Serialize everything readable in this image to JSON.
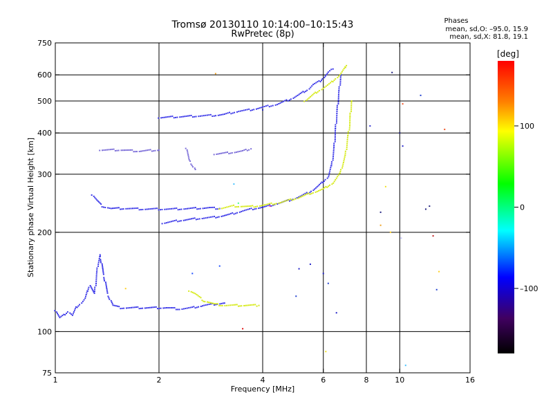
{
  "chart_data": {
    "type": "scatter",
    "title": "Tromsø 20130110 10:14:00–10:15:43",
    "subtitle": "RwPretec (8p)",
    "xlabel": "Frequency [MHz]",
    "ylabel": "Stationary phase Virtual Height [km]",
    "xscale": "log",
    "yscale": "log",
    "xlim": [
      1,
      16
    ],
    "ylim": [
      75,
      750
    ],
    "xticks": [
      1,
      2,
      4,
      6,
      8,
      10,
      16
    ],
    "xtick_labels": [
      "1",
      "2",
      "4",
      "6",
      "8",
      "10",
      "16"
    ],
    "yticks": [
      75,
      100,
      200,
      300,
      400,
      500,
      600,
      750
    ],
    "ytick_labels": [
      "75",
      "100",
      "200",
      "300",
      "400",
      "500",
      "600",
      "750"
    ],
    "xgrid": [
      2,
      4,
      6,
      8,
      10
    ],
    "ygrid": [
      100,
      200,
      300,
      400,
      500,
      600
    ],
    "grid": true,
    "phase_stats": {
      "header": "Phases",
      "o_line": "mean, sd,O: –95.0, 15.9",
      "x_line": "mean, sd,X: 81.8, 19.1"
    },
    "colorbar": {
      "label": "[deg]",
      "range": [
        -180,
        180
      ],
      "ticks": [
        100,
        0,
        -100
      ],
      "tick_labels": [
        "100",
        "0",
        "–100"
      ]
    },
    "series": [
      {
        "mode": "O",
        "color": "#3b38e8",
        "segments": [
          [
            [
              1.0,
              116
            ],
            [
              1.03,
              110
            ],
            [
              1.06,
              112
            ],
            [
              1.09,
              115
            ],
            [
              1.12,
              112
            ],
            [
              1.15,
              118
            ],
            [
              1.18,
              121
            ],
            [
              1.22,
              126
            ],
            [
              1.26,
              138
            ],
            [
              1.3,
              130
            ],
            [
              1.33,
              160
            ],
            [
              1.35,
              170
            ],
            [
              1.38,
              150
            ],
            [
              1.42,
              130
            ],
            [
              1.47,
              120
            ],
            [
              1.55,
              118
            ],
            [
              1.7,
              118
            ],
            [
              1.9,
              118
            ],
            [
              2.1,
              118
            ],
            [
              2.3,
              117
            ],
            [
              2.5,
              118
            ],
            [
              2.7,
              120
            ],
            [
              2.9,
              121
            ],
            [
              3.1,
              122
            ]
          ],
          [
            [
              1.28,
              260
            ],
            [
              1.32,
              250
            ],
            [
              1.37,
              240
            ],
            [
              1.45,
              236
            ],
            [
              1.6,
              236
            ],
            [
              1.8,
              235
            ],
            [
              2.0,
              235
            ],
            [
              2.2,
              235
            ],
            [
              2.5,
              236
            ],
            [
              2.8,
              237
            ],
            [
              3.0,
              236
            ]
          ],
          [
            [
              2.05,
              213
            ],
            [
              2.3,
              217
            ],
            [
              2.6,
              220
            ],
            [
              2.9,
              222
            ],
            [
              3.2,
              226
            ],
            [
              3.5,
              232
            ],
            [
              3.8,
              236
            ],
            [
              4.1,
              239
            ],
            [
              4.4,
              244
            ],
            [
              4.8,
              250
            ],
            [
              5.2,
              258
            ],
            [
              5.5,
              265
            ],
            [
              5.8,
              276
            ],
            [
              6.0,
              284
            ],
            [
              6.2,
              295
            ],
            [
              6.35,
              320
            ],
            [
              6.45,
              360
            ],
            [
              6.5,
              400
            ],
            [
              6.55,
              440
            ],
            [
              6.6,
              480
            ],
            [
              6.65,
              520
            ],
            [
              6.7,
              560
            ],
            [
              6.75,
              600
            ]
          ],
          [
            [
              2.0,
              445
            ],
            [
              2.6,
              450
            ],
            [
              2.9,
              452
            ],
            [
              3.1,
              455
            ],
            [
              3.4,
              465
            ],
            [
              3.7,
              470
            ],
            [
              4.0,
              478
            ],
            [
              4.4,
              488
            ],
            [
              4.8,
              505
            ],
            [
              5.1,
              522
            ],
            [
              5.4,
              540
            ],
            [
              5.6,
              560
            ],
            [
              5.9,
              575
            ],
            [
              6.2,
              610
            ],
            [
              6.4,
              625
            ]
          ]
        ]
      },
      {
        "mode": "X",
        "color": "#d6ea1a",
        "segments": [
          [
            [
              2.45,
              133
            ],
            [
              2.55,
              130
            ],
            [
              2.7,
              124
            ],
            [
              2.9,
              121
            ],
            [
              3.1,
              120
            ],
            [
              3.3,
              120
            ],
            [
              3.6,
              120
            ],
            [
              3.9,
              120
            ]
          ],
          [
            [
              3.0,
              236
            ],
            [
              3.3,
              240
            ],
            [
              3.7,
              239
            ],
            [
              4.1,
              242
            ],
            [
              4.5,
              246
            ],
            [
              5.0,
              253
            ],
            [
              5.5,
              262
            ],
            [
              6.0,
              270
            ],
            [
              6.4,
              282
            ],
            [
              6.7,
              300
            ],
            [
              6.95,
              340
            ],
            [
              7.05,
              380
            ],
            [
              7.15,
              420
            ],
            [
              7.2,
              460
            ],
            [
              7.25,
              500
            ]
          ],
          [
            [
              5.3,
              500
            ],
            [
              5.8,
              535
            ],
            [
              6.3,
              565
            ],
            [
              6.7,
              600
            ],
            [
              6.95,
              630
            ],
            [
              7.0,
              640
            ]
          ]
        ]
      },
      {
        "mode": "other",
        "color": "#7a6cd8",
        "segments": [
          [
            [
              2.9,
              345
            ],
            [
              3.2,
              348
            ],
            [
              3.5,
              352
            ],
            [
              3.7,
              358
            ]
          ],
          [
            [
              2.4,
              360
            ],
            [
              2.45,
              330
            ],
            [
              2.5,
              320
            ],
            [
              2.55,
              310
            ]
          ],
          [
            [
              1.35,
              355
            ],
            [
              1.55,
              355
            ],
            [
              1.75,
              352
            ],
            [
              2.0,
              355
            ]
          ]
        ]
      }
    ],
    "outliers": [
      [
        2.92,
        605,
        "#f0a020"
      ],
      [
        4.0,
        470,
        "#2020c8"
      ],
      [
        8.2,
        420,
        "#3030d0"
      ],
      [
        9.5,
        610,
        "#202080"
      ],
      [
        10.2,
        490,
        "#f05020"
      ],
      [
        13.5,
        410,
        "#f05020"
      ],
      [
        11.5,
        520,
        "#2040d0"
      ],
      [
        10.0,
        400,
        "#202080"
      ],
      [
        12.5,
        195,
        "#c02020"
      ],
      [
        9.4,
        200,
        "#ffd020"
      ],
      [
        8.8,
        210,
        "#f0a020"
      ],
      [
        9.1,
        275,
        "#f0e020"
      ],
      [
        10.2,
        365,
        "#2020c8"
      ],
      [
        3.5,
        102,
        "#e01010"
      ],
      [
        6.1,
        87,
        "#f0e020"
      ],
      [
        6.55,
        114,
        "#2020c8"
      ],
      [
        5.0,
        128,
        "#2040d0"
      ],
      [
        6.2,
        140,
        "#2040d0"
      ],
      [
        12.8,
        134,
        "#2040d0"
      ],
      [
        10.1,
        192,
        "#c0c0ff"
      ],
      [
        8.8,
        230,
        "#202080"
      ],
      [
        2.5,
        150,
        "#2050ff"
      ],
      [
        3.0,
        158,
        "#2050ff"
      ],
      [
        5.1,
        155,
        "#2020c8"
      ],
      [
        13.0,
        152,
        "#ffd020"
      ],
      [
        10.4,
        79,
        "#40c0ff"
      ],
      [
        1.6,
        135,
        "#ffd020"
      ],
      [
        5.5,
        160,
        "#2020c8"
      ],
      [
        6.0,
        150,
        "#2020c8"
      ],
      [
        3.3,
        280,
        "#40c0ff"
      ],
      [
        3.4,
        245,
        "#40ff80"
      ],
      [
        4.2,
        240,
        "#ff40a0"
      ],
      [
        11.9,
        235,
        "#202080"
      ],
      [
        12.2,
        240,
        "#202080"
      ]
    ]
  }
}
